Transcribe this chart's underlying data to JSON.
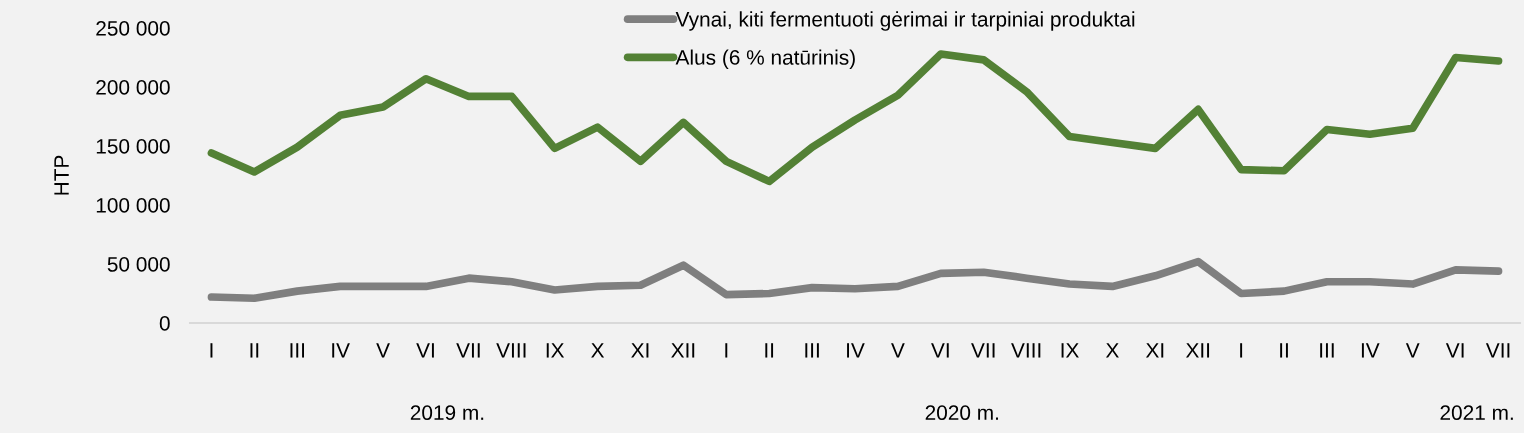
{
  "chart_data": {
    "type": "line",
    "ylabel": "HTP",
    "categories": [
      "I",
      "II",
      "III",
      "IV",
      "V",
      "VI",
      "VII",
      "VIII",
      "IX",
      "X",
      "XI",
      "XII",
      "I",
      "II",
      "III",
      "IV",
      "V",
      "VI",
      "VII",
      "VIII",
      "IX",
      "X",
      "XI",
      "XII",
      "I",
      "II",
      "III",
      "IV",
      "V",
      "VI",
      "VII"
    ],
    "series": [
      {
        "name": "Vynai, kiti fermentuoti gėrimai ir tarpiniai produktai",
        "color": "#7f7f7f",
        "values": [
          22000,
          21000,
          27000,
          31000,
          31000,
          31000,
          38000,
          35000,
          28000,
          31000,
          32000,
          49000,
          24000,
          25000,
          30000,
          29000,
          31000,
          42000,
          43000,
          38000,
          33000,
          31000,
          40000,
          52000,
          25000,
          27000,
          35000,
          35000,
          33000,
          45000,
          44000
        ]
      },
      {
        "name": "Alus (6 % natūrinis)",
        "color": "#538135",
        "values": [
          144000,
          128000,
          149000,
          176000,
          183000,
          207000,
          192000,
          192000,
          148000,
          166000,
          137000,
          170000,
          137000,
          120000,
          149000,
          172000,
          193000,
          228000,
          223000,
          196000,
          158000,
          153000,
          148000,
          181000,
          130000,
          129000,
          164000,
          160000,
          165000,
          225000,
          222000
        ]
      }
    ],
    "ylim": [
      0,
      250000
    ],
    "yticks": [
      {
        "value": 0,
        "label": "0"
      },
      {
        "value": 50000,
        "label": "50 000"
      },
      {
        "value": 100000,
        "label": "100 000"
      },
      {
        "value": 150000,
        "label": "150 000"
      },
      {
        "value": 200000,
        "label": "200 000"
      },
      {
        "value": 250000,
        "label": "250 000"
      }
    ],
    "annotations": [
      "2019 m.",
      "2020 m.",
      "2021 m."
    ],
    "legend": "top",
    "grid": false,
    "marker": "none",
    "line_style": "solid"
  }
}
